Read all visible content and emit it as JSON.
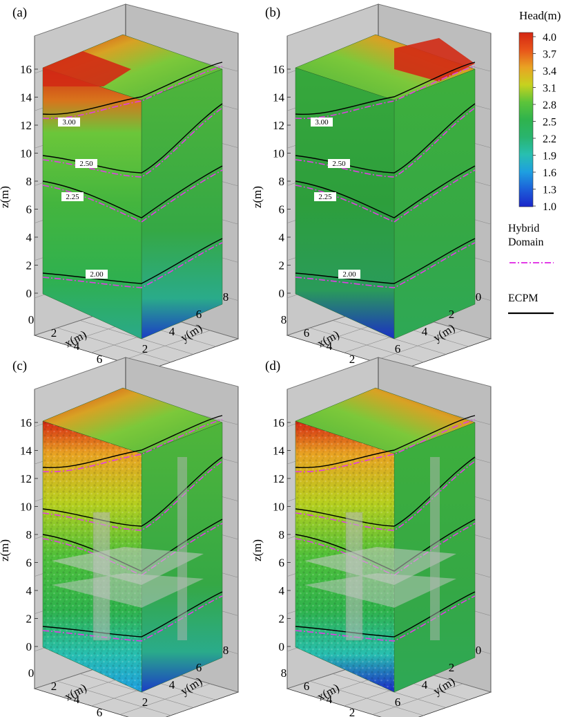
{
  "chart_data": {
    "type": "heatmap",
    "colorbar": {
      "title": "Head(m)",
      "ticks": [
        "4.0",
        "3.7",
        "3.4",
        "3.1",
        "2.8",
        "2.5",
        "2.2",
        "1.9",
        "1.6",
        "1.3",
        "1.0"
      ],
      "range": [
        1.0,
        4.0
      ],
      "colors": [
        "#d42612",
        "#e8541a",
        "#e9a323",
        "#c7d21f",
        "#5cc43a",
        "#2fb34d",
        "#29b46e",
        "#28bfb0",
        "#1e9fe0",
        "#1c5fd9",
        "#1b26c9"
      ]
    },
    "legend": {
      "entries": [
        {
          "label_lines": [
            "Hybrid",
            "Domain"
          ],
          "style": "dash-dot",
          "color": "#e23ce6"
        },
        {
          "label_lines": [
            "ECPM"
          ],
          "style": "solid",
          "color": "#000000"
        }
      ]
    },
    "panels": [
      {
        "label": "(a)",
        "zlabel": "z(m)",
        "zticks": [
          "16",
          "14",
          "12",
          "10",
          "8",
          "6",
          "4",
          "2",
          "0"
        ],
        "xlabel": "x(m)",
        "xticks": [
          "0",
          "2",
          "4",
          "6"
        ],
        "ylabel": "y(m)",
        "yticks": [
          "2",
          "4",
          "6",
          "8"
        ],
        "contour_labels": [
          "3.00",
          "2.50",
          "2.25",
          "2.00"
        ]
      },
      {
        "label": "(b)",
        "zlabel": "z(m)",
        "zticks": [
          "16",
          "14",
          "12",
          "10",
          "8",
          "6",
          "4",
          "2",
          "0"
        ],
        "xlabel": "x(m)",
        "xticks": [
          "8",
          "6",
          "4",
          "2"
        ],
        "ylabel": "y(m)",
        "yticks": [
          "6",
          "4",
          "2",
          "0"
        ],
        "contour_labels": [
          "3.00",
          "2.50",
          "2.25",
          "2.00"
        ]
      },
      {
        "label": "(c)",
        "zlabel": "z(m)",
        "zticks": [
          "16",
          "14",
          "12",
          "10",
          "8",
          "6",
          "4",
          "2",
          "0"
        ],
        "xlabel": "x(m)",
        "xticks": [
          "0",
          "2",
          "4",
          "6"
        ],
        "ylabel": "y(m)",
        "yticks": [
          "2",
          "4",
          "6",
          "8"
        ],
        "contour_labels": []
      },
      {
        "label": "(d)",
        "zlabel": "z(m)",
        "zticks": [
          "16",
          "14",
          "12",
          "10",
          "8",
          "6",
          "4",
          "2",
          "0"
        ],
        "xlabel": "x(m)",
        "xticks": [
          "8",
          "6",
          "4",
          "2"
        ],
        "ylabel": "y(m)",
        "yticks": [
          "6",
          "4",
          "2",
          "0"
        ],
        "contour_labels": []
      }
    ]
  }
}
